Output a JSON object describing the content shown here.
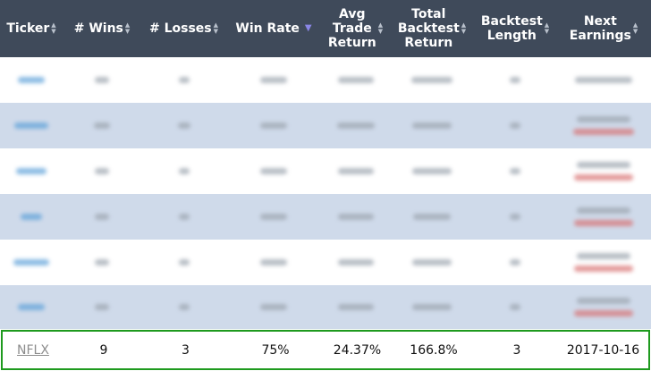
{
  "headers": [
    {
      "label": "Ticker"
    },
    {
      "label": "# Wins"
    },
    {
      "label": "# Losses"
    },
    {
      "label": "Win Rate"
    },
    {
      "label": "Avg\nTrade\nReturn"
    },
    {
      "label": "Total\nBacktest\nReturn"
    },
    {
      "label": "Backtest\nLength"
    },
    {
      "label": "Next\nEarnings"
    }
  ],
  "sort_icon": "sort-arrows-icon",
  "active_sort_icon": "sort-descending-icon",
  "highlight_row": {
    "ticker": "NFLX",
    "wins": "9",
    "losses": "3",
    "win_rate": "75%",
    "avg_trade_return": "24.37%",
    "total_backtest_return": "166.8%",
    "backtest_length": "3",
    "next_earnings": "2017-10-16"
  },
  "colors": {
    "header_bg": "#3f4a5a",
    "row_alt": "#cfdaea",
    "highlight_border": "#1e9a1e"
  }
}
